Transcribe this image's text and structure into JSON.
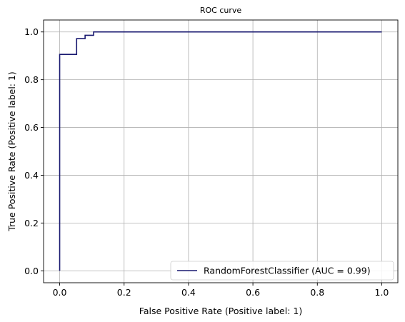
{
  "chart_data": {
    "type": "line",
    "title": "ROC curve",
    "xlabel": "False Positive Rate (Positive label: 1)",
    "ylabel": "True Positive Rate (Positive label: 1)",
    "xlim": [
      -0.05,
      1.05
    ],
    "ylim": [
      -0.05,
      1.05
    ],
    "xticks": [
      0.0,
      0.2,
      0.4,
      0.6,
      0.8,
      1.0
    ],
    "yticks": [
      0.0,
      0.2,
      0.4,
      0.6,
      0.8,
      1.0
    ],
    "xtick_labels": [
      "0.0",
      "0.2",
      "0.4",
      "0.6",
      "0.8",
      "1.0"
    ],
    "ytick_labels": [
      "0.0",
      "0.2",
      "0.4",
      "0.6",
      "0.8",
      "1.0"
    ],
    "grid": true,
    "legend_position": "lower-right",
    "series": [
      {
        "name": "RandomForestClassifier (AUC = 0.99)",
        "color": "#191970",
        "drawstyle": "steps-post",
        "x": [
          0.0,
          0.0,
          0.0526,
          0.0526,
          0.0789,
          0.0789,
          0.1053,
          0.1053,
          1.0
        ],
        "y": [
          0.0,
          0.906,
          0.906,
          0.972,
          0.972,
          0.986,
          0.986,
          1.0,
          1.0
        ]
      }
    ]
  }
}
